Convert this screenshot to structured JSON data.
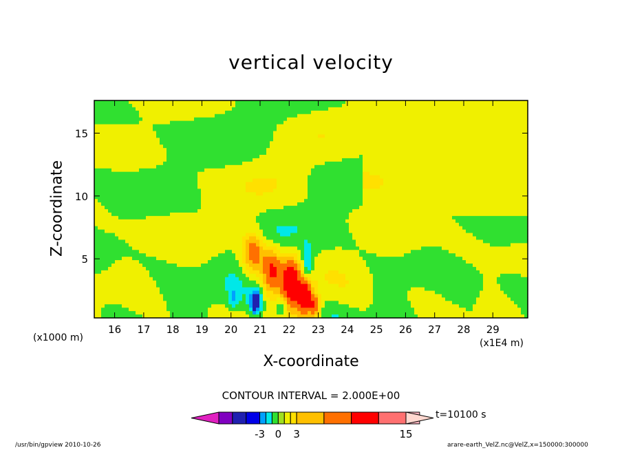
{
  "chart_data": {
    "type": "heatmap",
    "title": "vertical velocity",
    "xlabel": "X-coordinate",
    "ylabel": "Z-coordinate",
    "x_unit_left": "(x1000 m)",
    "x_unit_right": "(x1E4 m)",
    "xlim": [
      15.3,
      30.2
    ],
    "ylim": [
      0.3,
      17.6
    ],
    "x_ticks": [
      "16",
      "17",
      "18",
      "19",
      "20",
      "21",
      "22",
      "23",
      "24",
      "25",
      "26",
      "27",
      "28",
      "29"
    ],
    "y_ticks": [
      "5",
      "10",
      "15"
    ],
    "contour_interval": "CONTOUR INTERVAL = 2.000E+00",
    "time_label": "t=10100 s",
    "colorbar_labels": [
      "-3",
      "0",
      "3",
      "15"
    ],
    "colorbar_colors": [
      "#e020c0",
      "#8000c0",
      "#2020b0",
      "#0000e8",
      "#00a0ff",
      "#00e8e8",
      "#30e030",
      "#a0e020",
      "#f0f000",
      "#ffe000",
      "#ffc000",
      "#ff7000",
      "#ff0000",
      "#ff7070",
      "#ffb6c1",
      "#ffd8d0"
    ],
    "field_palette": {
      "neg3": "#2020b0",
      "neg2": "#00a0ff",
      "neg1": "#00e8e8",
      "zero_neg": "#30e030",
      "zero_pos": "#f0f000",
      "pos1": "#ffe000",
      "pos2": "#ffc000",
      "pos3": "#ff7000",
      "pos4": "#ff0000"
    },
    "grid": false
  },
  "footer": {
    "left": "/usr/bin/gpview   2010-10-26",
    "right": "arare-earth_VelZ.nc@VelZ,x=150000:300000"
  }
}
